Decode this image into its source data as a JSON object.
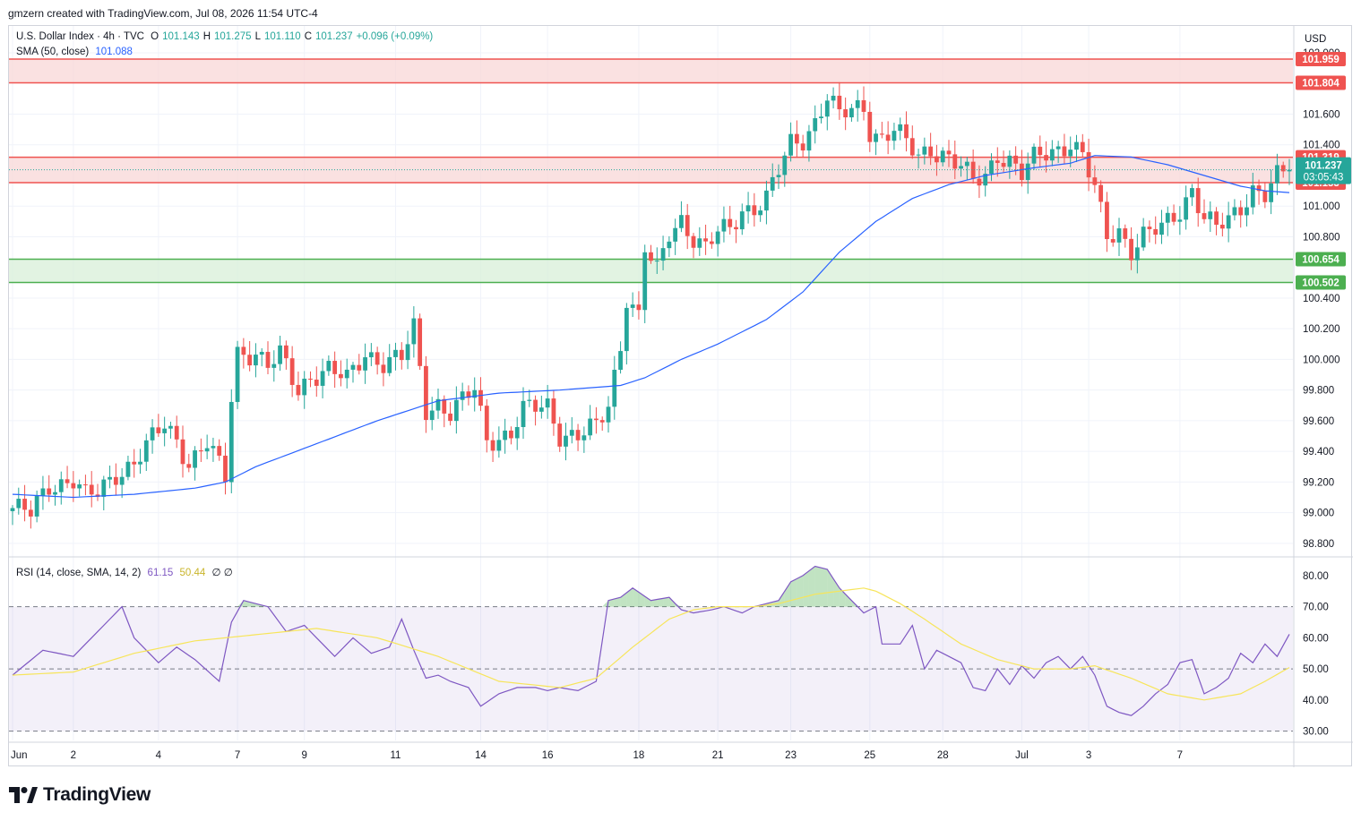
{
  "header": {
    "attribution": "gmzern created with TradingView.com, Jul 08, 2026 11:54 UTC-4"
  },
  "legend": {
    "symbol": "U.S. Dollar Index · 4h · TVC",
    "open_label": "O",
    "open": "101.143",
    "high_label": "H",
    "high": "101.275",
    "low_label": "L",
    "low": "101.110",
    "close_label": "C",
    "close": "101.237",
    "change": "+0.096 (+0.09%)",
    "sma_label": "SMA (50, close)",
    "sma_value": "101.088",
    "rsi_label": "RSI (14, close, SMA, 14, 2)",
    "rsi_value": "61.15",
    "rsi_sma_value": "50.44",
    "rsi_extra": "∅ ∅"
  },
  "footer": {
    "brand": "TradingView",
    "logo_icon": "tradingview-logo-icon"
  },
  "colors": {
    "up": "#26a69a",
    "down": "#ef5350",
    "sma": "#2962ff",
    "rsi": "#7e57c2",
    "rsi_sma": "#f7e55a",
    "resistance_zone": "#f8d7d7",
    "support_zone": "#d8efd8",
    "grid": "#f0f3fa"
  },
  "chart_data": [
    {
      "type": "candlestick",
      "title": "U.S. Dollar Index · 4h · TVC",
      "currency": "USD",
      "ylim": [
        98.7,
        102.0
      ],
      "y_ticks": [
        "98.800",
        "99.000",
        "99.200",
        "99.400",
        "99.600",
        "99.800",
        "100.000",
        "100.200",
        "100.400",
        "100.800",
        "101.000",
        "101.400",
        "101.600",
        "102.000"
      ],
      "x_ticks": [
        "Jun",
        "2",
        "4",
        "7",
        "9",
        "11",
        "14",
        "16",
        "18",
        "21",
        "23",
        "25",
        "28",
        "Jul",
        "3",
        "7"
      ],
      "zones": [
        {
          "kind": "resistance",
          "top": 101.959,
          "bottom": 101.804,
          "top_label": "101.959",
          "bottom_label": "101.804"
        },
        {
          "kind": "resistance",
          "top": 101.319,
          "bottom": 101.153,
          "top_label": "101.319",
          "bottom_label": "101.153"
        },
        {
          "kind": "support",
          "top": 100.654,
          "bottom": 100.502,
          "top_label": "100.654",
          "bottom_label": "100.502"
        }
      ],
      "last_price": {
        "value": 101.237,
        "label": "101.237",
        "countdown": "03:05:43"
      },
      "price_anchors": [
        [
          0,
          99.03
        ],
        [
          3,
          98.99
        ],
        [
          6,
          99.18
        ],
        [
          10,
          99.22
        ],
        [
          12,
          99.1
        ],
        [
          14,
          99.12
        ],
        [
          17,
          99.26
        ],
        [
          20,
          99.33
        ],
        [
          25,
          99.57
        ],
        [
          27,
          99.48
        ],
        [
          29,
          99.33
        ],
        [
          32,
          99.45
        ],
        [
          35,
          99.22
        ],
        [
          36,
          99.75
        ],
        [
          37,
          100.05
        ],
        [
          40,
          100.05
        ],
        [
          42,
          99.95
        ],
        [
          44,
          100.02
        ],
        [
          47,
          99.8
        ],
        [
          49,
          99.9
        ],
        [
          52,
          99.93
        ],
        [
          55,
          99.86
        ],
        [
          58,
          100.05
        ],
        [
          61,
          99.98
        ],
        [
          64,
          100.0
        ],
        [
          66,
          100.2
        ],
        [
          68,
          99.68
        ],
        [
          70,
          99.72
        ],
        [
          72,
          99.65
        ],
        [
          74,
          99.72
        ],
        [
          76,
          99.8
        ],
        [
          78,
          99.48
        ],
        [
          80,
          99.5
        ],
        [
          82,
          99.52
        ],
        [
          84,
          99.66
        ],
        [
          86,
          99.68
        ],
        [
          88,
          99.7
        ],
        [
          90,
          99.52
        ],
        [
          93,
          99.5
        ],
        [
          96,
          99.55
        ],
        [
          98,
          99.7
        ],
        [
          100,
          100.1
        ],
        [
          101,
          100.42
        ],
        [
          103,
          100.28
        ],
        [
          104,
          100.72
        ],
        [
          106,
          100.56
        ],
        [
          108,
          100.82
        ],
        [
          110,
          100.92
        ],
        [
          112,
          100.8
        ],
        [
          114,
          100.72
        ],
        [
          116,
          100.82
        ],
        [
          118,
          100.85
        ],
        [
          120,
          100.98
        ],
        [
          122,
          101.0
        ],
        [
          124,
          101.05
        ],
        [
          126,
          101.22
        ],
        [
          128,
          101.4
        ],
        [
          130,
          101.44
        ],
        [
          132,
          101.56
        ],
        [
          134,
          101.72
        ],
        [
          136,
          101.58
        ],
        [
          138,
          101.62
        ],
        [
          140,
          101.65
        ],
        [
          141,
          101.5
        ],
        [
          143,
          101.45
        ],
        [
          145,
          101.5
        ],
        [
          147,
          101.4
        ],
        [
          149,
          101.32
        ],
        [
          151,
          101.38
        ],
        [
          153,
          101.35
        ],
        [
          156,
          101.25
        ],
        [
          158,
          101.15
        ],
        [
          160,
          101.2
        ],
        [
          162,
          101.35
        ],
        [
          164,
          101.3
        ],
        [
          166,
          101.2
        ],
        [
          168,
          101.3
        ],
        [
          170,
          101.35
        ],
        [
          172,
          101.38
        ],
        [
          174,
          101.42
        ],
        [
          176,
          101.32
        ],
        [
          178,
          101.1
        ],
        [
          180,
          100.8
        ],
        [
          182,
          100.85
        ],
        [
          184,
          100.72
        ],
        [
          186,
          100.8
        ],
        [
          189,
          100.85
        ],
        [
          192,
          100.98
        ],
        [
          194,
          101.12
        ],
        [
          196,
          100.92
        ],
        [
          198,
          100.85
        ],
        [
          200,
          100.9
        ],
        [
          202,
          101.0
        ],
        [
          204,
          101.12
        ],
        [
          206,
          101.08
        ],
        [
          208,
          101.18
        ],
        [
          210,
          101.237
        ]
      ],
      "sma_anchors": [
        [
          0,
          99.12
        ],
        [
          10,
          99.1
        ],
        [
          20,
          99.12
        ],
        [
          30,
          99.16
        ],
        [
          35,
          99.2
        ],
        [
          40,
          99.3
        ],
        [
          50,
          99.45
        ],
        [
          60,
          99.6
        ],
        [
          70,
          99.73
        ],
        [
          80,
          99.78
        ],
        [
          90,
          99.8
        ],
        [
          100,
          99.83
        ],
        [
          104,
          99.88
        ],
        [
          110,
          100.0
        ],
        [
          116,
          100.1
        ],
        [
          124,
          100.26
        ],
        [
          130,
          100.44
        ],
        [
          136,
          100.7
        ],
        [
          142,
          100.9
        ],
        [
          148,
          101.05
        ],
        [
          154,
          101.14
        ],
        [
          160,
          101.2
        ],
        [
          168,
          101.25
        ],
        [
          174,
          101.28
        ],
        [
          178,
          101.33
        ],
        [
          184,
          101.32
        ],
        [
          190,
          101.27
        ],
        [
          196,
          101.2
        ],
        [
          202,
          101.13
        ],
        [
          206,
          101.1
        ],
        [
          210,
          101.088
        ]
      ]
    },
    {
      "type": "line",
      "title": "RSI (14, close, SMA, 14, 2)",
      "ylim": [
        27,
        84
      ],
      "y_ticks": [
        "30.00",
        "40.00",
        "50.00",
        "60.00",
        "70.00",
        "80.00"
      ],
      "bands": {
        "upper": 70,
        "middle": 50,
        "lower": 30
      },
      "series": [
        {
          "name": "RSI",
          "values": [
            [
              0,
              48
            ],
            [
              5,
              56
            ],
            [
              10,
              54
            ],
            [
              14,
              62
            ],
            [
              18,
              70
            ],
            [
              20,
              60
            ],
            [
              24,
              52
            ],
            [
              27,
              57
            ],
            [
              30,
              53
            ],
            [
              34,
              46
            ],
            [
              36,
              65
            ],
            [
              38,
              72
            ],
            [
              42,
              70
            ],
            [
              45,
              62
            ],
            [
              48,
              64
            ],
            [
              50,
              60
            ],
            [
              53,
              54
            ],
            [
              56,
              60
            ],
            [
              59,
              55
            ],
            [
              62,
              57
            ],
            [
              64,
              66
            ],
            [
              66,
              56
            ],
            [
              68,
              47
            ],
            [
              70,
              48
            ],
            [
              72,
              46
            ],
            [
              75,
              44
            ],
            [
              77,
              38
            ],
            [
              80,
              42
            ],
            [
              83,
              44
            ],
            [
              86,
              44
            ],
            [
              88,
              43
            ],
            [
              90,
              44
            ],
            [
              93,
              43
            ],
            [
              96,
              46
            ],
            [
              98,
              72
            ],
            [
              100,
              73
            ],
            [
              102,
              76
            ],
            [
              105,
              72
            ],
            [
              108,
              73
            ],
            [
              110,
              69
            ],
            [
              112,
              68
            ],
            [
              115,
              69
            ],
            [
              117,
              70
            ],
            [
              120,
              68
            ],
            [
              122,
              70
            ],
            [
              124,
              71
            ],
            [
              126,
              72
            ],
            [
              128,
              78
            ],
            [
              130,
              80
            ],
            [
              132,
              83
            ],
            [
              134,
              82
            ],
            [
              136,
              76
            ],
            [
              138,
              72
            ],
            [
              140,
              68
            ],
            [
              142,
              70
            ],
            [
              143,
              58
            ],
            [
              146,
              58
            ],
            [
              148,
              64
            ],
            [
              150,
              50
            ],
            [
              152,
              56
            ],
            [
              154,
              54
            ],
            [
              156,
              52
            ],
            [
              158,
              44
            ],
            [
              160,
              43
            ],
            [
              162,
              50
            ],
            [
              164,
              45
            ],
            [
              166,
              51
            ],
            [
              168,
              47
            ],
            [
              170,
              52
            ],
            [
              172,
              54
            ],
            [
              174,
              50
            ],
            [
              176,
              54
            ],
            [
              178,
              48
            ],
            [
              180,
              38
            ],
            [
              182,
              36
            ],
            [
              184,
              35
            ],
            [
              186,
              38
            ],
            [
              188,
              42
            ],
            [
              190,
              45
            ],
            [
              192,
              52
            ],
            [
              194,
              53
            ],
            [
              196,
              42
            ],
            [
              198,
              44
            ],
            [
              200,
              47
            ],
            [
              202,
              55
            ],
            [
              204,
              52
            ],
            [
              206,
              58
            ],
            [
              208,
              54
            ],
            [
              210,
              61.15
            ]
          ]
        },
        {
          "name": "RSI SMA",
          "values": [
            [
              0,
              48
            ],
            [
              10,
              49
            ],
            [
              20,
              55
            ],
            [
              30,
              59
            ],
            [
              40,
              61
            ],
            [
              50,
              63
            ],
            [
              60,
              60
            ],
            [
              70,
              54
            ],
            [
              80,
              46
            ],
            [
              90,
              44
            ],
            [
              96,
              47
            ],
            [
              102,
              57
            ],
            [
              108,
              66
            ],
            [
              112,
              69
            ],
            [
              116,
              70
            ],
            [
              122,
              70
            ],
            [
              126,
              71
            ],
            [
              132,
              74
            ],
            [
              136,
              75
            ],
            [
              140,
              76
            ],
            [
              142,
              75
            ],
            [
              146,
              71
            ],
            [
              150,
              66
            ],
            [
              156,
              58
            ],
            [
              162,
              53
            ],
            [
              168,
              50
            ],
            [
              174,
              50
            ],
            [
              178,
              51
            ],
            [
              184,
              47
            ],
            [
              190,
              42
            ],
            [
              196,
              40
            ],
            [
              202,
              42
            ],
            [
              206,
              46
            ],
            [
              210,
              50.44
            ]
          ]
        }
      ]
    }
  ]
}
